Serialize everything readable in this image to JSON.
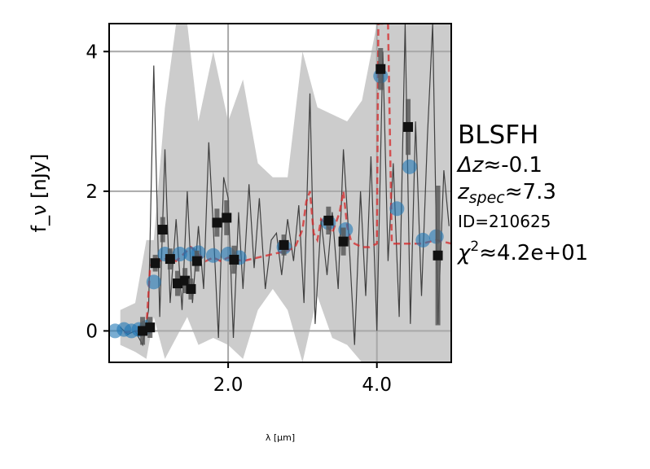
{
  "chart_data": {
    "type": "scatter",
    "title": "",
    "xlabel": "λ [μm]",
    "ylabel": "f_ν [nJy]",
    "xlim": [
      0.4,
      5.0
    ],
    "ylim": [
      -0.45,
      4.4
    ],
    "grid": true,
    "x_ticks": [
      2.0,
      4.0
    ],
    "x_tick_labels": [
      "2.0",
      "4.0"
    ],
    "y_ticks": [
      0,
      2,
      4
    ],
    "y_tick_labels": [
      "0",
      "2",
      "4"
    ],
    "annotations": {
      "model": "BLSFH",
      "dz_prefix": "Δz",
      "dz_value": "≈-0.1",
      "zspec_prefix": "z",
      "zspec_sub": "spec",
      "zspec_value": "≈7.3",
      "id": "ID=210625",
      "chi2_prefix": "χ",
      "chi2_sup": "2",
      "chi2_value": "≈4.2e+01"
    },
    "colors": {
      "spectrum": "#404040",
      "error_band": "#cccccc",
      "photometry": "#1f77b4",
      "model_line": "#d62728",
      "binned": "#111111"
    },
    "series": [
      {
        "role": "spectrum",
        "x": [
          0.55,
          0.65,
          0.75,
          0.85,
          0.93,
          1.0,
          1.08,
          1.15,
          1.22,
          1.3,
          1.38,
          1.45,
          1.52,
          1.6,
          1.67,
          1.74,
          1.8,
          1.87,
          1.94,
          2.0,
          2.07,
          2.14,
          2.2,
          2.28,
          2.35,
          2.42,
          2.5,
          2.58,
          2.65,
          2.72,
          2.8,
          2.88,
          2.95,
          3.02,
          3.1,
          3.17,
          3.25,
          3.33,
          3.4,
          3.48,
          3.55,
          3.62,
          3.7,
          3.78,
          3.85,
          3.92,
          4.0,
          4.08,
          4.15,
          4.22,
          4.3,
          4.38,
          4.45,
          4.52,
          4.6,
          4.68,
          4.75,
          4.82,
          4.9,
          4.97
        ],
        "y": [
          0.05,
          -0.05,
          0.0,
          -0.2,
          0.3,
          3.8,
          0.2,
          2.6,
          0.4,
          1.6,
          0.3,
          2.0,
          0.4,
          1.5,
          0.6,
          2.7,
          1.5,
          -0.1,
          2.2,
          1.9,
          -0.1,
          1.7,
          0.6,
          2.1,
          0.9,
          1.9,
          0.6,
          1.3,
          1.4,
          0.8,
          1.6,
          1.0,
          1.8,
          0.4,
          3.4,
          0.1,
          1.6,
          0.8,
          1.7,
          0.6,
          2.6,
          1.4,
          -0.2,
          2.0,
          0.5,
          2.5,
          0.0,
          4.0,
          1.0,
          2.4,
          0.2,
          4.4,
          0.1,
          3.0,
          0.5,
          2.8,
          4.4,
          0.1,
          2.3,
          1.5
        ]
      },
      {
        "role": "error_band",
        "x": [
          0.55,
          0.75,
          0.9,
          1.0,
          1.15,
          1.3,
          1.45,
          1.6,
          1.8,
          2.0,
          2.2,
          2.4,
          2.6,
          2.8,
          3.0,
          3.2,
          3.4,
          3.6,
          3.8,
          4.0,
          4.2,
          4.4,
          4.6,
          4.8,
          5.0
        ],
        "upper": [
          0.3,
          0.4,
          1.3,
          1.3,
          3.2,
          4.4,
          4.4,
          3.0,
          4.0,
          3.0,
          3.6,
          2.4,
          2.2,
          2.2,
          4.0,
          3.2,
          3.1,
          3.0,
          3.3,
          4.4,
          4.4,
          4.4,
          4.4,
          4.4,
          4.4
        ],
        "lower": [
          -0.2,
          -0.3,
          -0.4,
          0.2,
          -0.4,
          -0.1,
          0.2,
          -0.2,
          -0.1,
          -0.2,
          -0.4,
          0.3,
          0.6,
          0.3,
          -0.45,
          0.5,
          -0.1,
          -0.2,
          -0.45,
          -0.45,
          -0.45,
          -0.45,
          -0.45,
          -0.45,
          -0.45
        ]
      },
      {
        "role": "model",
        "x": [
          0.6,
          0.8,
          0.9,
          0.95,
          1.0,
          1.1,
          1.2,
          1.3,
          1.4,
          1.5,
          1.6,
          1.7,
          1.8,
          1.9,
          2.0,
          2.2,
          2.4,
          2.6,
          2.8,
          2.9,
          3.0,
          3.05,
          3.1,
          3.15,
          3.2,
          3.25,
          3.3,
          3.4,
          3.5,
          3.55,
          3.6,
          3.65,
          3.7,
          3.8,
          3.9,
          4.0,
          4.02,
          4.05,
          4.1,
          4.15,
          4.2,
          4.4,
          4.6,
          4.8,
          5.0
        ],
        "y": [
          -0.02,
          0.0,
          0.05,
          0.9,
          1.05,
          1.0,
          1.05,
          1.0,
          1.1,
          1.2,
          1.1,
          1.0,
          1.05,
          1.0,
          1.05,
          1.0,
          1.05,
          1.1,
          1.15,
          1.2,
          1.45,
          1.85,
          2.0,
          1.4,
          1.3,
          1.6,
          1.55,
          1.4,
          1.7,
          2.0,
          1.5,
          1.3,
          1.25,
          1.2,
          1.2,
          1.25,
          4.4,
          4.4,
          4.4,
          4.4,
          1.25,
          1.25,
          1.25,
          1.3,
          1.25
        ]
      },
      {
        "role": "photometry",
        "x": [
          0.48,
          0.6,
          0.7,
          0.8,
          0.9,
          1.0,
          1.15,
          1.35,
          1.5,
          1.6,
          1.8,
          2.0,
          2.15,
          2.75,
          3.35,
          3.58,
          4.05,
          4.27,
          4.44,
          4.62,
          4.8
        ],
        "y": [
          0.0,
          0.02,
          0.0,
          0.02,
          0.05,
          0.7,
          1.1,
          1.1,
          1.1,
          1.12,
          1.08,
          1.1,
          1.05,
          1.2,
          1.55,
          1.45,
          3.65,
          1.75,
          2.35,
          1.3,
          1.35
        ]
      },
      {
        "role": "binned",
        "x": [
          0.85,
          0.95,
          1.02,
          1.12,
          1.22,
          1.32,
          1.42,
          1.5,
          1.58,
          1.85,
          1.98,
          2.08,
          2.75,
          3.35,
          3.55,
          4.05,
          4.42,
          4.82
        ],
        "y": [
          0.0,
          0.05,
          0.97,
          1.45,
          1.03,
          0.68,
          0.72,
          0.6,
          1.0,
          1.55,
          1.62,
          1.02,
          1.23,
          1.58,
          1.28,
          3.75,
          2.92,
          1.08
        ],
        "err": [
          0.2,
          0.15,
          0.12,
          0.18,
          0.15,
          0.18,
          0.18,
          0.15,
          0.15,
          0.2,
          0.25,
          0.2,
          0.15,
          0.2,
          0.2,
          0.3,
          0.4,
          1.0
        ]
      }
    ]
  }
}
